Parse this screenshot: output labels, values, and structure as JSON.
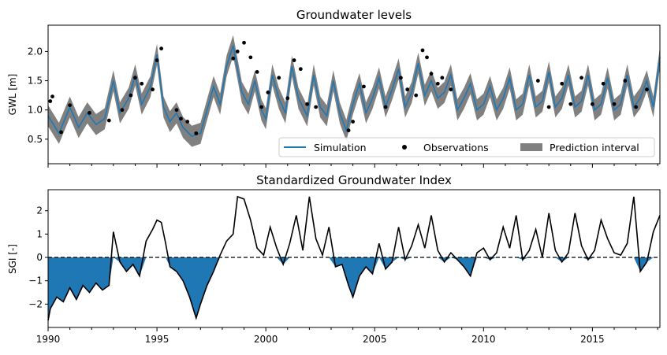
{
  "chart_data": [
    {
      "type": "line",
      "title": "Groundwater levels",
      "ylabel": "GWL [m]",
      "xlim": [
        1990,
        2018.1
      ],
      "ylim": [
        0.08,
        2.45
      ],
      "yticks": [
        0.5,
        1.0,
        1.5,
        2.0
      ],
      "ytick_labels": [
        "0.5",
        "1.0",
        "1.5",
        "2.0"
      ],
      "legend_placement": "lower-right",
      "legend": [
        "Simulation",
        "Observations",
        "Prediction interval"
      ],
      "colors": {
        "simulation": "#1f77b4",
        "observations": "#000000",
        "interval": "#808080"
      },
      "series": [
        {
          "name": "Simulation",
          "x": [
            1990.0,
            1990.5,
            1991.0,
            1991.4,
            1991.8,
            1992.2,
            1992.6,
            1993.0,
            1993.3,
            1993.7,
            1994.0,
            1994.3,
            1994.7,
            1995.0,
            1995.3,
            1995.6,
            1995.9,
            1996.2,
            1996.6,
            1997.0,
            1997.3,
            1997.6,
            1997.9,
            1998.2,
            1998.5,
            1998.9,
            1999.2,
            1999.5,
            1999.8,
            2000.0,
            2000.3,
            2000.6,
            2000.9,
            2001.2,
            2001.5,
            2001.9,
            2002.2,
            2002.5,
            2002.8,
            2003.1,
            2003.4,
            2003.7,
            2004.0,
            2004.3,
            2004.6,
            2004.9,
            2005.2,
            2005.5,
            2005.8,
            2006.1,
            2006.4,
            2006.7,
            2007.0,
            2007.3,
            2007.6,
            2007.9,
            2008.2,
            2008.5,
            2008.8,
            2009.1,
            2009.4,
            2009.7,
            2010.0,
            2010.3,
            2010.6,
            2010.9,
            2011.2,
            2011.5,
            2011.8,
            2012.1,
            2012.4,
            2012.7,
            2013.0,
            2013.3,
            2013.6,
            2013.9,
            2014.2,
            2014.5,
            2014.8,
            2015.1,
            2015.4,
            2015.7,
            2016.0,
            2016.3,
            2016.6,
            2016.9,
            2017.2,
            2017.5,
            2017.8,
            2018.1
          ],
          "y": [
            0.9,
            0.6,
            1.05,
            0.7,
            0.95,
            0.75,
            0.85,
            1.5,
            0.95,
            1.2,
            1.6,
            1.1,
            1.4,
            1.95,
            1.05,
            0.8,
            0.95,
            0.7,
            0.55,
            0.6,
            1.0,
            1.4,
            1.1,
            1.75,
            2.1,
            1.3,
            1.1,
            1.5,
            1.0,
            0.85,
            1.6,
            1.2,
            0.95,
            1.75,
            1.2,
            0.9,
            1.6,
            1.05,
            0.9,
            1.5,
            0.95,
            0.65,
            1.1,
            1.45,
            0.95,
            1.2,
            1.55,
            1.05,
            1.35,
            1.7,
            1.05,
            1.3,
            1.8,
            1.25,
            1.5,
            1.2,
            1.3,
            1.6,
            1.0,
            1.2,
            1.45,
            1.0,
            1.1,
            1.4,
            1.0,
            1.2,
            1.55,
            1.0,
            1.1,
            1.6,
            1.05,
            1.15,
            1.65,
            1.05,
            1.2,
            1.6,
            1.05,
            1.15,
            1.6,
            1.0,
            1.1,
            1.55,
            1.0,
            1.1,
            1.6,
            1.05,
            1.2,
            1.5,
            1.05,
            1.9
          ]
        },
        {
          "name": "Observations",
          "x": [
            1990.1,
            1990.2,
            1990.6,
            1991.0,
            1991.9,
            1992.8,
            1993.4,
            1993.8,
            1994.0,
            1994.3,
            1994.8,
            1995.0,
            1995.2,
            1995.9,
            1996.1,
            1996.4,
            1996.8,
            1998.5,
            1998.7,
            1999.0,
            1999.3,
            1999.6,
            1999.8,
            2000.1,
            2000.6,
            2001.0,
            2001.3,
            2001.6,
            2001.9,
            2002.3,
            2003.8,
            2004.0,
            2004.5,
            2005.5,
            2006.2,
            2006.5,
            2006.9,
            2007.2,
            2007.4,
            2007.6,
            2007.9,
            2008.1,
            2008.5,
            2012.5,
            2013.0,
            2013.6,
            2014.0,
            2014.5,
            2015.0,
            2015.5,
            2016.0,
            2016.5,
            2017.0,
            2017.5
          ],
          "y": [
            1.15,
            1.23,
            0.62,
            1.08,
            0.95,
            0.82,
            1.0,
            1.25,
            1.55,
            1.45,
            1.35,
            1.85,
            2.05,
            1.0,
            0.85,
            0.8,
            0.6,
            1.88,
            2.0,
            2.15,
            1.9,
            1.65,
            1.05,
            1.3,
            1.55,
            1.2,
            1.85,
            1.7,
            1.1,
            1.05,
            0.65,
            0.8,
            1.4,
            1.05,
            1.55,
            1.35,
            1.25,
            2.02,
            1.9,
            1.62,
            1.45,
            1.55,
            1.35,
            1.5,
            1.05,
            1.45,
            1.1,
            1.55,
            1.1,
            1.45,
            1.1,
            1.5,
            1.05,
            1.35
          ]
        }
      ]
    },
    {
      "type": "line",
      "title": "Standardized Groundwater Index",
      "ylabel": "SGI [-]",
      "xlabel": "",
      "xlim": [
        1990,
        2018.1
      ],
      "ylim": [
        -3.0,
        2.9
      ],
      "yticks": [
        -2,
        -1,
        0,
        1,
        2
      ],
      "ytick_labels": [
        "−2",
        "−1",
        "0",
        "1",
        "2"
      ],
      "xticks": [
        1990,
        1995,
        2000,
        2005,
        2010,
        2015
      ],
      "xtick_labels": [
        "1990",
        "1995",
        "2000",
        "2005",
        "2010",
        "2015"
      ],
      "fill_below_zero_color": "#1f77b4",
      "series": [
        {
          "name": "SGI",
          "x": [
            1990.0,
            1990.1,
            1990.4,
            1990.7,
            1991.0,
            1991.3,
            1991.6,
            1991.9,
            1992.2,
            1992.5,
            1992.8,
            1993.0,
            1993.3,
            1993.6,
            1993.9,
            1994.2,
            1994.5,
            1994.8,
            1995.0,
            1995.2,
            1995.4,
            1995.6,
            1995.9,
            1996.2,
            1996.5,
            1996.8,
            1997.0,
            1997.3,
            1997.6,
            1997.9,
            1998.2,
            1998.5,
            1998.7,
            1999.0,
            1999.3,
            1999.6,
            1999.9,
            2000.2,
            2000.5,
            2000.8,
            2001.1,
            2001.4,
            2001.7,
            2002.0,
            2002.3,
            2002.6,
            2002.9,
            2003.2,
            2003.5,
            2003.8,
            2004.0,
            2004.3,
            2004.6,
            2004.9,
            2005.2,
            2005.5,
            2005.8,
            2006.1,
            2006.4,
            2006.7,
            2007.0,
            2007.3,
            2007.6,
            2007.9,
            2008.2,
            2008.5,
            2008.8,
            2009.1,
            2009.4,
            2009.7,
            2010.0,
            2010.3,
            2010.6,
            2010.9,
            2011.2,
            2011.5,
            2011.8,
            2012.1,
            2012.4,
            2012.7,
            2013.0,
            2013.3,
            2013.6,
            2013.9,
            2014.2,
            2014.5,
            2014.8,
            2015.1,
            2015.4,
            2015.7,
            2016.0,
            2016.3,
            2016.6,
            2016.9,
            2017.2,
            2017.5,
            2017.8,
            2018.1
          ],
          "y": [
            -2.7,
            -2.2,
            -1.7,
            -1.9,
            -1.3,
            -1.8,
            -1.2,
            -1.5,
            -1.1,
            -1.4,
            -1.2,
            1.1,
            -0.2,
            -0.6,
            -0.3,
            -0.8,
            0.7,
            1.2,
            1.6,
            1.5,
            0.6,
            -0.4,
            -0.6,
            -1.0,
            -1.7,
            -2.6,
            -2.0,
            -1.2,
            -0.6,
            0.1,
            0.7,
            1.0,
            2.6,
            2.5,
            1.6,
            0.4,
            0.1,
            1.3,
            0.4,
            -0.3,
            0.6,
            1.8,
            0.3,
            2.6,
            0.8,
            0.1,
            1.3,
            -0.4,
            -0.3,
            -1.2,
            -1.7,
            -0.8,
            -0.4,
            -0.7,
            0.6,
            -0.5,
            -0.2,
            1.3,
            -0.1,
            0.5,
            1.4,
            0.4,
            1.8,
            0.3,
            -0.2,
            0.2,
            -0.1,
            -0.4,
            -0.8,
            0.2,
            0.4,
            -0.1,
            0.2,
            1.3,
            0.4,
            1.8,
            -0.1,
            0.3,
            1.2,
            0.0,
            1.9,
            0.3,
            -0.2,
            0.2,
            1.9,
            0.5,
            -0.1,
            0.3,
            1.6,
            0.8,
            0.2,
            0.1,
            0.6,
            2.6,
            -0.6,
            -0.2,
            1.1,
            1.8
          ]
        }
      ]
    }
  ]
}
